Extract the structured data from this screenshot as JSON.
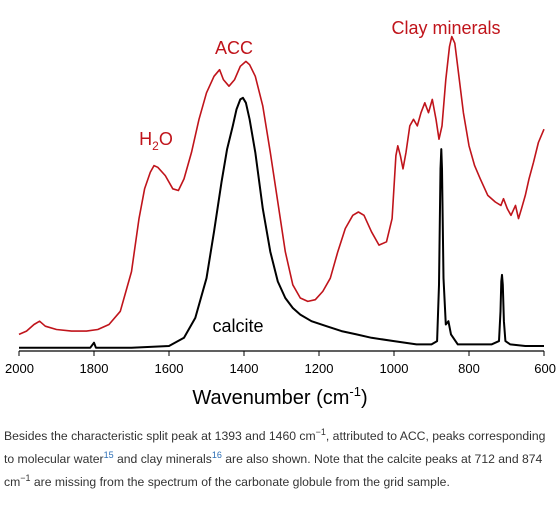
{
  "chart_data": {
    "type": "line",
    "xlabel_main": "Wavenumber (cm",
    "xlabel_sup": "-1",
    "xlabel_close": ")",
    "xlim": [
      2000,
      600
    ],
    "x_reversed": true,
    "ylim": [
      0,
      1
    ],
    "y_axis_shown": false,
    "grid": false,
    "x_ticks": [
      2000,
      1800,
      1600,
      1400,
      1200,
      1000,
      800,
      600
    ],
    "x_tick_labels": [
      "2000",
      "1800",
      "1600",
      "1400",
      "1200",
      "1000",
      "800",
      "600"
    ],
    "series": [
      {
        "name": "",
        "color": "#c0141b",
        "points": [
          [
            2000,
            0.05
          ],
          [
            1980,
            0.06
          ],
          [
            1960,
            0.08
          ],
          [
            1945,
            0.09
          ],
          [
            1930,
            0.075
          ],
          [
            1900,
            0.065
          ],
          [
            1860,
            0.06
          ],
          [
            1820,
            0.06
          ],
          [
            1790,
            0.065
          ],
          [
            1760,
            0.08
          ],
          [
            1730,
            0.12
          ],
          [
            1700,
            0.24
          ],
          [
            1680,
            0.4
          ],
          [
            1665,
            0.49
          ],
          [
            1650,
            0.54
          ],
          [
            1640,
            0.56
          ],
          [
            1630,
            0.555
          ],
          [
            1610,
            0.53
          ],
          [
            1590,
            0.49
          ],
          [
            1575,
            0.485
          ],
          [
            1560,
            0.52
          ],
          [
            1540,
            0.6
          ],
          [
            1520,
            0.7
          ],
          [
            1500,
            0.78
          ],
          [
            1480,
            0.83
          ],
          [
            1465,
            0.85
          ],
          [
            1455,
            0.82
          ],
          [
            1440,
            0.8
          ],
          [
            1425,
            0.82
          ],
          [
            1410,
            0.86
          ],
          [
            1395,
            0.875
          ],
          [
            1385,
            0.865
          ],
          [
            1370,
            0.83
          ],
          [
            1350,
            0.74
          ],
          [
            1330,
            0.6
          ],
          [
            1310,
            0.45
          ],
          [
            1290,
            0.3
          ],
          [
            1270,
            0.2
          ],
          [
            1250,
            0.16
          ],
          [
            1230,
            0.15
          ],
          [
            1210,
            0.155
          ],
          [
            1190,
            0.18
          ],
          [
            1170,
            0.22
          ],
          [
            1150,
            0.3
          ],
          [
            1130,
            0.37
          ],
          [
            1110,
            0.41
          ],
          [
            1095,
            0.42
          ],
          [
            1080,
            0.41
          ],
          [
            1060,
            0.36
          ],
          [
            1040,
            0.32
          ],
          [
            1020,
            0.33
          ],
          [
            1005,
            0.4
          ],
          [
            995,
            0.59
          ],
          [
            990,
            0.62
          ],
          [
            983,
            0.59
          ],
          [
            976,
            0.55
          ],
          [
            968,
            0.6
          ],
          [
            958,
            0.68
          ],
          [
            948,
            0.7
          ],
          [
            938,
            0.68
          ],
          [
            928,
            0.72
          ],
          [
            918,
            0.75
          ],
          [
            908,
            0.72
          ],
          [
            898,
            0.76
          ],
          [
            888,
            0.7
          ],
          [
            880,
            0.64
          ],
          [
            872,
            0.68
          ],
          [
            862,
            0.82
          ],
          [
            852,
            0.92
          ],
          [
            846,
            0.95
          ],
          [
            838,
            0.93
          ],
          [
            828,
            0.84
          ],
          [
            815,
            0.72
          ],
          [
            800,
            0.62
          ],
          [
            785,
            0.56
          ],
          [
            770,
            0.52
          ],
          [
            750,
            0.47
          ],
          [
            730,
            0.45
          ],
          [
            715,
            0.44
          ],
          [
            708,
            0.46
          ],
          [
            698,
            0.43
          ],
          [
            688,
            0.41
          ],
          [
            676,
            0.44
          ],
          [
            668,
            0.4
          ],
          [
            660,
            0.43
          ],
          [
            650,
            0.47
          ],
          [
            640,
            0.52
          ],
          [
            628,
            0.57
          ],
          [
            615,
            0.63
          ],
          [
            600,
            0.67
          ]
        ]
      },
      {
        "name": "calcite",
        "color": "#000000",
        "points": [
          [
            2000,
            0.01
          ],
          [
            1900,
            0.01
          ],
          [
            1810,
            0.01
          ],
          [
            1800,
            0.025
          ],
          [
            1795,
            0.01
          ],
          [
            1700,
            0.01
          ],
          [
            1600,
            0.015
          ],
          [
            1560,
            0.04
          ],
          [
            1530,
            0.1
          ],
          [
            1500,
            0.22
          ],
          [
            1480,
            0.36
          ],
          [
            1460,
            0.51
          ],
          [
            1445,
            0.61
          ],
          [
            1430,
            0.68
          ],
          [
            1420,
            0.73
          ],
          [
            1410,
            0.76
          ],
          [
            1403,
            0.765
          ],
          [
            1395,
            0.75
          ],
          [
            1385,
            0.7
          ],
          [
            1370,
            0.6
          ],
          [
            1350,
            0.43
          ],
          [
            1330,
            0.3
          ],
          [
            1310,
            0.21
          ],
          [
            1290,
            0.16
          ],
          [
            1270,
            0.13
          ],
          [
            1250,
            0.11
          ],
          [
            1220,
            0.09
          ],
          [
            1180,
            0.075
          ],
          [
            1140,
            0.06
          ],
          [
            1100,
            0.05
          ],
          [
            1060,
            0.04
          ],
          [
            1000,
            0.03
          ],
          [
            940,
            0.02
          ],
          [
            900,
            0.02
          ],
          [
            885,
            0.03
          ],
          [
            880,
            0.2
          ],
          [
            876,
            0.55
          ],
          [
            874,
            0.61
          ],
          [
            872,
            0.55
          ],
          [
            868,
            0.22
          ],
          [
            862,
            0.08
          ],
          [
            855,
            0.09
          ],
          [
            848,
            0.05
          ],
          [
            830,
            0.02
          ],
          [
            740,
            0.02
          ],
          [
            720,
            0.03
          ],
          [
            716,
            0.12
          ],
          [
            714,
            0.21
          ],
          [
            712,
            0.23
          ],
          [
            710,
            0.2
          ],
          [
            707,
            0.09
          ],
          [
            703,
            0.03
          ],
          [
            690,
            0.02
          ],
          [
            650,
            0.015
          ],
          [
            600,
            0.015
          ]
        ]
      }
    ],
    "annotations": [
      {
        "label": "ACC",
        "color": "#c0141b"
      },
      {
        "label": "Clay minerals",
        "color": "#c0141b"
      },
      {
        "label_main": "H",
        "label_sub": "2",
        "label_end": "O",
        "color": "#c0141b"
      },
      {
        "label": "calcite",
        "color": "#000000"
      }
    ]
  },
  "caption": {
    "p1": "Besides the characteristic split peak at 1393 and 1460 cm",
    "sup1": "−1",
    "p2": ", attributed to ACC, peaks corresponding to molecular water",
    "ref1": "15",
    "p3": " and clay minerals",
    "ref2": "16",
    "p4": " are also shown. Note that the calcite peaks at 712 and 874 cm",
    "sup2": "−1",
    "p5": " are missing from the spectrum of the carbonate globule from the grid sample."
  }
}
